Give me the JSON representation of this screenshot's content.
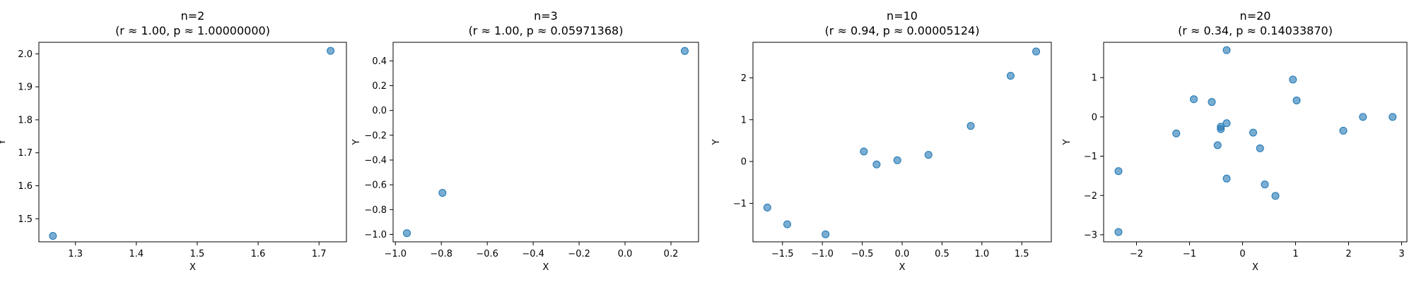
{
  "figure": {
    "background": "#ffffff",
    "marker_color": "#1f77b4",
    "marker_alpha": 0.6
  },
  "chart_data": [
    {
      "type": "scatter",
      "title": "n=2",
      "subtitle": "(r ≈ 1.00, p ≈ 1.00000000)",
      "xlabel": "X",
      "ylabel": "Y",
      "xlim": [
        1.24,
        1.745
      ],
      "ylim": [
        1.43,
        2.035
      ],
      "xticks": [
        1.3,
        1.4,
        1.5,
        1.6,
        1.7
      ],
      "xtick_labels": [
        "1.3",
        "1.4",
        "1.5",
        "1.6",
        "1.7"
      ],
      "yticks": [
        1.5,
        1.6,
        1.7,
        1.8,
        1.9,
        2.0
      ],
      "ytick_labels": [
        "1.5",
        "1.6",
        "1.7",
        "1.8",
        "1.9",
        "2.0"
      ],
      "grid": false,
      "points": [
        {
          "x": 1.263,
          "y": 1.448
        },
        {
          "x": 1.719,
          "y": 2.009
        }
      ]
    },
    {
      "type": "scatter",
      "title": "n=3",
      "subtitle": "(r ≈ 1.00, p ≈ 0.05971368)",
      "xlabel": "X",
      "ylabel": "Y",
      "xlim": [
        -1.01,
        0.32
      ],
      "ylim": [
        -1.06,
        0.55
      ],
      "xticks": [
        -1.0,
        -0.8,
        -0.6,
        -0.4,
        -0.2,
        0.0,
        0.2
      ],
      "xtick_labels": [
        "−1.0",
        "−0.8",
        "−0.6",
        "−0.4",
        "−0.2",
        "0.0",
        "0.2"
      ],
      "yticks": [
        -1.0,
        -0.8,
        -0.6,
        -0.4,
        -0.2,
        0.0,
        0.2,
        0.4
      ],
      "ytick_labels": [
        "−1.0",
        "−0.8",
        "−0.6",
        "−0.4",
        "−0.2",
        "0.0",
        "0.2",
        "0.4"
      ],
      "grid": false,
      "points": [
        {
          "x": -0.95,
          "y": -0.99
        },
        {
          "x": -0.795,
          "y": -0.665
        },
        {
          "x": 0.26,
          "y": 0.48
        }
      ]
    },
    {
      "type": "scatter",
      "title": "n=10",
      "subtitle": "(r ≈ 0.94, p ≈ 0.00005124)",
      "xlabel": "X",
      "ylabel": "Y",
      "xlim": [
        -1.87,
        1.87
      ],
      "ylim": [
        -1.92,
        2.85
      ],
      "xticks": [
        -1.5,
        -1.0,
        -0.5,
        0.0,
        0.5,
        1.0,
        1.5
      ],
      "xtick_labels": [
        "−1.5",
        "−1.0",
        "−0.5",
        "0.0",
        "0.5",
        "1.0",
        "1.5"
      ],
      "yticks": [
        -1,
        0,
        1,
        2
      ],
      "ytick_labels": [
        "−1",
        "0",
        "1",
        "2"
      ],
      "grid": false,
      "points": [
        {
          "x": -1.69,
          "y": -1.1
        },
        {
          "x": -1.44,
          "y": -1.5
        },
        {
          "x": -0.96,
          "y": -1.74
        },
        {
          "x": -0.48,
          "y": 0.24
        },
        {
          "x": -0.32,
          "y": -0.07
        },
        {
          "x": -0.06,
          "y": 0.03
        },
        {
          "x": 0.33,
          "y": 0.16
        },
        {
          "x": 0.86,
          "y": 0.85
        },
        {
          "x": 1.36,
          "y": 2.05
        },
        {
          "x": 1.68,
          "y": 2.63
        }
      ]
    },
    {
      "type": "scatter",
      "title": "n=20",
      "subtitle": "(r ≈ 0.34, p ≈ 0.14033870)",
      "xlabel": "X",
      "ylabel": "Y",
      "xlim": [
        -2.62,
        3.1
      ],
      "ylim": [
        -3.18,
        1.9
      ],
      "xticks": [
        -2,
        -1,
        0,
        1,
        2,
        3
      ],
      "xtick_labels": [
        "−2",
        "−1",
        "0",
        "1",
        "2",
        "3"
      ],
      "yticks": [
        -3,
        -2,
        -1,
        0,
        1
      ],
      "ytick_labels": [
        "−3",
        "−2",
        "−1",
        "0",
        "1"
      ],
      "grid": false,
      "points": [
        {
          "x": -2.34,
          "y": -1.38
        },
        {
          "x": -2.34,
          "y": -2.93
        },
        {
          "x": -1.25,
          "y": -0.42
        },
        {
          "x": -0.92,
          "y": 0.45
        },
        {
          "x": -0.58,
          "y": 0.38
        },
        {
          "x": -0.47,
          "y": -0.72
        },
        {
          "x": -0.41,
          "y": -0.25
        },
        {
          "x": -0.41,
          "y": -0.31
        },
        {
          "x": -0.3,
          "y": 1.7
        },
        {
          "x": -0.3,
          "y": -0.16
        },
        {
          "x": -0.3,
          "y": -1.57
        },
        {
          "x": 0.2,
          "y": -0.4
        },
        {
          "x": 0.33,
          "y": -0.8
        },
        {
          "x": 0.42,
          "y": -1.72
        },
        {
          "x": 0.62,
          "y": -2.01
        },
        {
          "x": 0.95,
          "y": 0.95
        },
        {
          "x": 1.02,
          "y": 0.42
        },
        {
          "x": 1.9,
          "y": -0.35
        },
        {
          "x": 2.27,
          "y": 0.0
        },
        {
          "x": 2.83,
          "y": 0.0
        }
      ]
    }
  ]
}
